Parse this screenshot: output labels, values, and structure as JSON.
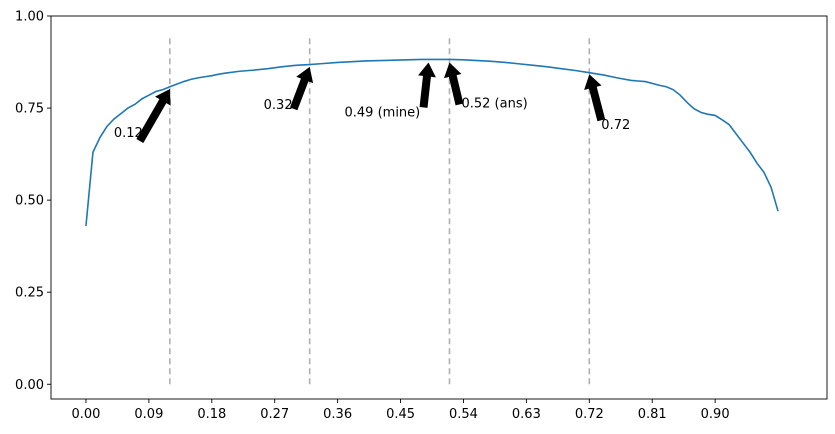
{
  "chart_data": {
    "type": "line",
    "title": "",
    "xlabel": "",
    "ylabel": "",
    "xlim": [
      -0.05,
      1.06
    ],
    "ylim": [
      -0.04,
      1.0
    ],
    "grid": false,
    "xticks": [
      "0.00",
      "0.09",
      "0.18",
      "0.27",
      "0.36",
      "0.45",
      "0.54",
      "0.63",
      "0.72",
      "0.81",
      "0.90"
    ],
    "xtick_values": [
      0.0,
      0.09,
      0.18,
      0.27,
      0.36,
      0.45,
      0.54,
      0.63,
      0.72,
      0.81,
      0.9
    ],
    "yticks": [
      "0.00",
      "0.25",
      "0.50",
      "0.75",
      "1.00"
    ],
    "ytick_values": [
      0.0,
      0.25,
      0.5,
      0.75,
      1.0
    ],
    "line_color": "#1f77b4",
    "vline_color": "#b0b0b0",
    "vlines": [
      0.12,
      0.32,
      0.52,
      0.72
    ],
    "vline_range": [
      0.0,
      0.95
    ],
    "series": [
      {
        "x": [
          0.0,
          0.01,
          0.02,
          0.03,
          0.04,
          0.05,
          0.06,
          0.07,
          0.08,
          0.09,
          0.1,
          0.11,
          0.12,
          0.13,
          0.14,
          0.15,
          0.16,
          0.17,
          0.18,
          0.19,
          0.2,
          0.22,
          0.24,
          0.26,
          0.28,
          0.3,
          0.32,
          0.34,
          0.36,
          0.38,
          0.4,
          0.42,
          0.44,
          0.46,
          0.48,
          0.5,
          0.52,
          0.54,
          0.56,
          0.58,
          0.6,
          0.62,
          0.64,
          0.66,
          0.68,
          0.7,
          0.72,
          0.74,
          0.76,
          0.78,
          0.8,
          0.82,
          0.83,
          0.84,
          0.85,
          0.86,
          0.87,
          0.88,
          0.89,
          0.9,
          0.91,
          0.92,
          0.93,
          0.94,
          0.95,
          0.96,
          0.97,
          0.98,
          0.99
        ],
        "y": [
          0.43,
          0.63,
          0.67,
          0.7,
          0.72,
          0.735,
          0.75,
          0.76,
          0.775,
          0.785,
          0.795,
          0.8,
          0.808,
          0.815,
          0.822,
          0.828,
          0.832,
          0.835,
          0.838,
          0.842,
          0.845,
          0.85,
          0.853,
          0.857,
          0.862,
          0.866,
          0.868,
          0.871,
          0.874,
          0.876,
          0.878,
          0.879,
          0.88,
          0.881,
          0.882,
          0.882,
          0.882,
          0.881,
          0.879,
          0.877,
          0.874,
          0.87,
          0.866,
          0.862,
          0.857,
          0.852,
          0.846,
          0.84,
          0.832,
          0.825,
          0.822,
          0.812,
          0.808,
          0.8,
          0.785,
          0.765,
          0.748,
          0.738,
          0.733,
          0.73,
          0.718,
          0.705,
          0.68,
          0.655,
          0.63,
          0.6,
          0.575,
          0.535,
          0.47
        ]
      }
    ],
    "annotations": [
      {
        "text": "0.12",
        "x": 0.12,
        "y": 0.81
      },
      {
        "text": "0.32",
        "x": 0.32,
        "y": 0.87
      },
      {
        "text": "0.49 (mine)",
        "x": 0.49,
        "y": 0.882
      },
      {
        "text": "0.52 (ans)",
        "x": 0.52,
        "y": 0.882
      },
      {
        "text": "0.72",
        "x": 0.72,
        "y": 0.85
      }
    ]
  }
}
